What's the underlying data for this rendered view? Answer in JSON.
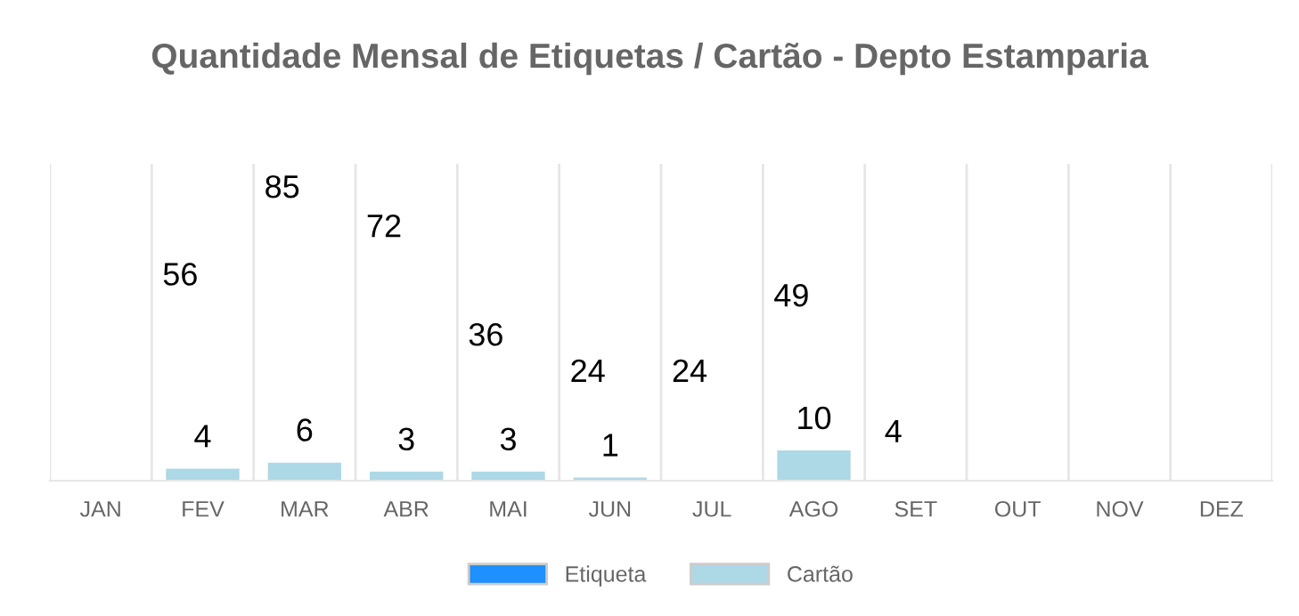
{
  "chart_data": {
    "type": "bar",
    "title": "Quantidade Mensal de Etiquetas / Cartão - Depto Estamparia",
    "categories": [
      "JAN",
      "FEV",
      "MAR",
      "ABR",
      "MAI",
      "JUN",
      "JUL",
      "AGO",
      "SET",
      "OUT",
      "NOV",
      "DEZ"
    ],
    "series": [
      {
        "name": "Etiqueta",
        "color": "#1e90ff",
        "values": [
          null,
          null,
          null,
          null,
          null,
          null,
          null,
          null,
          null,
          null,
          null,
          null
        ],
        "value_labels": [
          null,
          "56",
          "85",
          "72",
          "36",
          "24",
          "24",
          "49",
          "4",
          null,
          null,
          null
        ]
      },
      {
        "name": "Cartão",
        "color": "#add8e6",
        "values": [
          null,
          4,
          6,
          3,
          3,
          1,
          null,
          10,
          null,
          null,
          null,
          null
        ]
      }
    ],
    "ylim": [
      0,
      105
    ],
    "tick_labels": "x",
    "grid": "x",
    "legend": "bottom",
    "data_labels": true
  }
}
